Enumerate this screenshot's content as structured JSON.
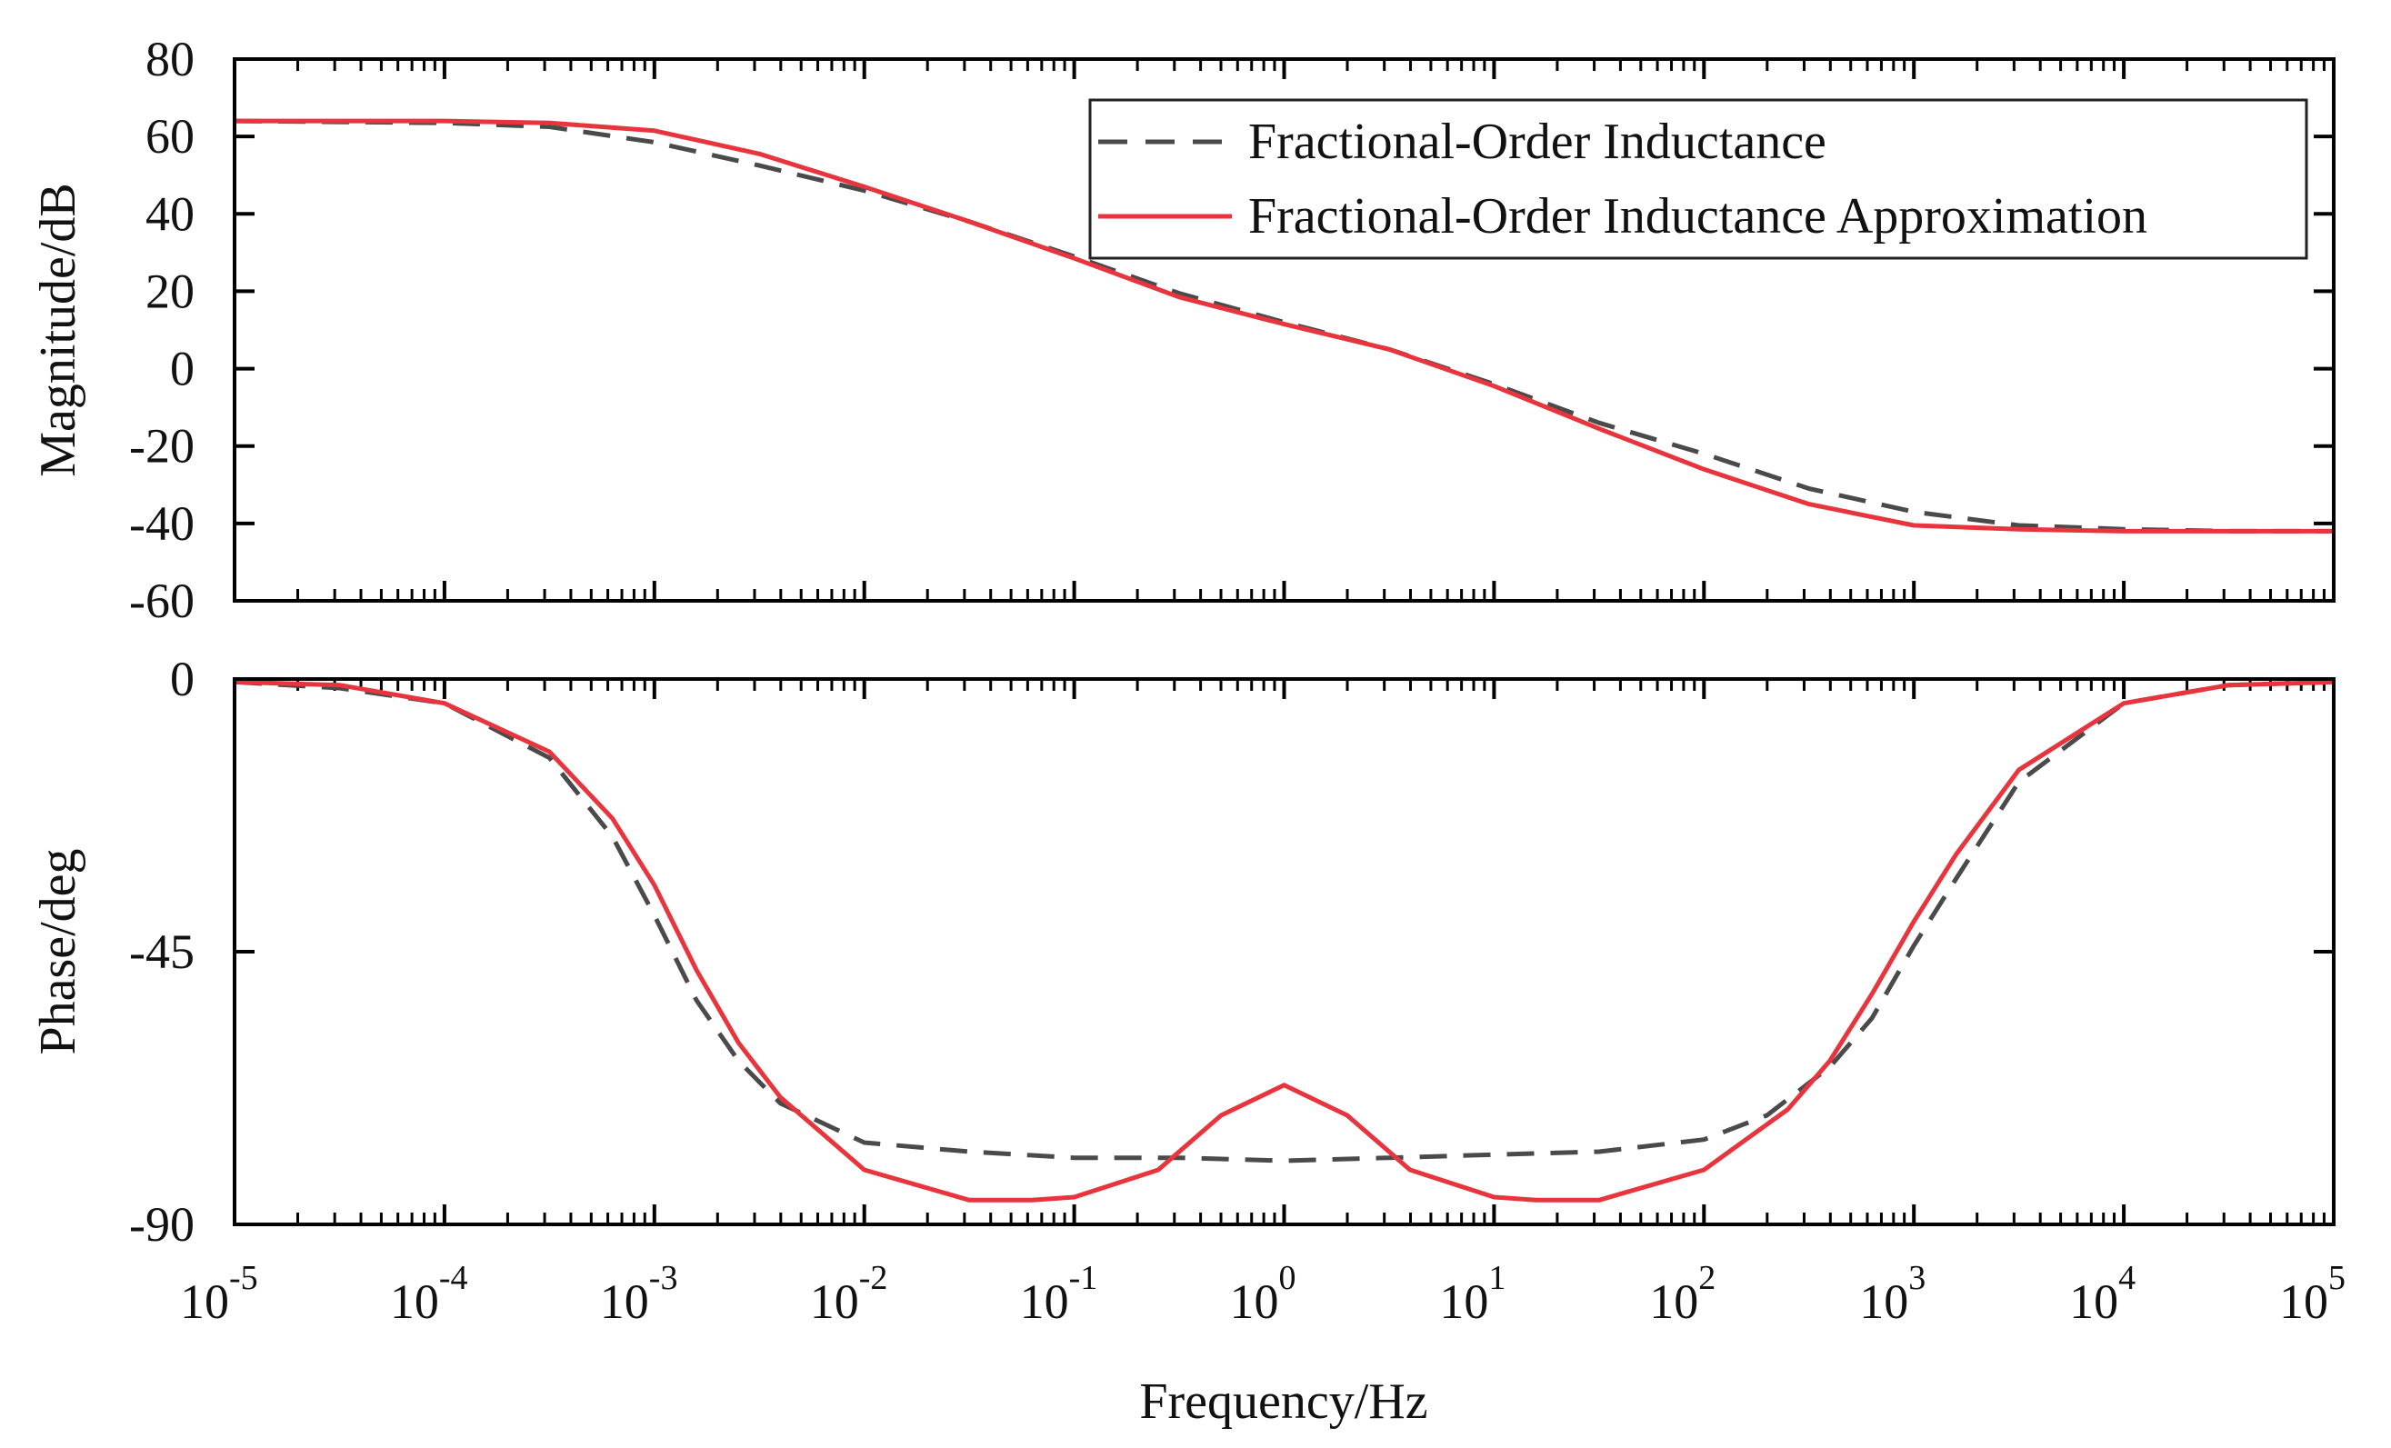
{
  "chart_data": [
    {
      "type": "line",
      "panel": "magnitude",
      "ylabel": "Magnitude/dB",
      "ylim": [
        -60,
        80
      ],
      "yticks": [
        "80",
        "60",
        "40",
        "20",
        "0",
        "-20",
        "-40",
        "-60"
      ],
      "x_scale": "log",
      "xlim_exponents": [
        -5,
        5
      ],
      "legend_position": "top-right",
      "series": [
        {
          "name": "Fractional-Order Inductance",
          "color": "#4a4a4a",
          "style": "dashed",
          "x_log10": [
            -5,
            -4,
            -3.5,
            -3,
            -2.5,
            -2,
            -1.5,
            -1,
            -0.5,
            0,
            0.5,
            1,
            1.5,
            2,
            2.5,
            3,
            3.5,
            4,
            4.5,
            5
          ],
          "y": [
            64,
            63.5,
            62.5,
            58.5,
            52.5,
            46,
            38,
            29,
            19.5,
            12,
            5,
            -4,
            -14,
            -22,
            -31,
            -37,
            -40.5,
            -41.5,
            -42,
            -42
          ]
        },
        {
          "name": "Fractional-Order Inductance Approximation",
          "color": "#e8353d",
          "style": "solid",
          "x_log10": [
            -5,
            -4,
            -3.5,
            -3,
            -2.5,
            -2,
            -1.5,
            -1,
            -0.5,
            0,
            0.5,
            1,
            1.5,
            2,
            2.5,
            3,
            3.5,
            4,
            4.5,
            5
          ],
          "y": [
            64,
            64,
            63.5,
            61.5,
            55.5,
            47,
            38,
            28.5,
            18.5,
            11.5,
            5,
            -4.5,
            -15.5,
            -26,
            -35,
            -40.5,
            -41.5,
            -42,
            -42,
            -42
          ]
        }
      ]
    },
    {
      "type": "line",
      "panel": "phase",
      "xlabel": "Frequency/Hz",
      "ylabel": "Phase/deg",
      "ylim": [
        -90,
        0
      ],
      "yticks": [
        "0",
        "-45",
        "-90"
      ],
      "x_scale": "log",
      "xlim_exponents": [
        -5,
        5
      ],
      "xtick_base": "10",
      "xtick_exponents": [
        "-5",
        "-4",
        "-3",
        "-2",
        "-1",
        "0",
        "1",
        "2",
        "3",
        "4",
        "5"
      ],
      "series": [
        {
          "name": "Fractional-Order Inductance",
          "color": "#4a4a4a",
          "style": "dashed",
          "x_log10": [
            -5,
            -4.5,
            -4,
            -3.5,
            -3.2,
            -3,
            -2.8,
            -2.6,
            -2.4,
            -2,
            -1.5,
            -1,
            -0.5,
            0,
            0.5,
            1,
            1.5,
            2,
            2.3,
            2.6,
            2.8,
            3,
            3.2,
            3.5,
            4,
            4.5,
            5
          ],
          "y": [
            -0.5,
            -1.5,
            -4,
            -13,
            -26,
            -39,
            -53,
            -63,
            -70,
            -76.5,
            -78,
            -79,
            -79,
            -79.5,
            -79,
            -78.5,
            -78,
            -76,
            -72,
            -64,
            -56,
            -44,
            -33,
            -17,
            -4,
            -1,
            -0.5
          ]
        },
        {
          "name": "Fractional-Order Inductance Approximation",
          "color": "#e8353d",
          "style": "solid",
          "x_log10": [
            -5,
            -4.5,
            -4,
            -3.5,
            -3.2,
            -3,
            -2.8,
            -2.6,
            -2.4,
            -2,
            -1.5,
            -1.2,
            -1,
            -0.6,
            -0.3,
            0,
            0.3,
            0.6,
            1,
            1.2,
            1.5,
            2,
            2.4,
            2.6,
            2.8,
            3,
            3.2,
            3.5,
            4,
            4.5,
            5
          ],
          "y": [
            -0.5,
            -1,
            -4,
            -12,
            -23,
            -34,
            -48,
            -60,
            -69,
            -81,
            -86,
            -86,
            -85.5,
            -81,
            -72,
            -67,
            -72,
            -81,
            -85.5,
            -86,
            -86,
            -81,
            -71,
            -63,
            -52,
            -40,
            -29,
            -15,
            -4,
            -1,
            -0.5
          ]
        }
      ]
    }
  ]
}
